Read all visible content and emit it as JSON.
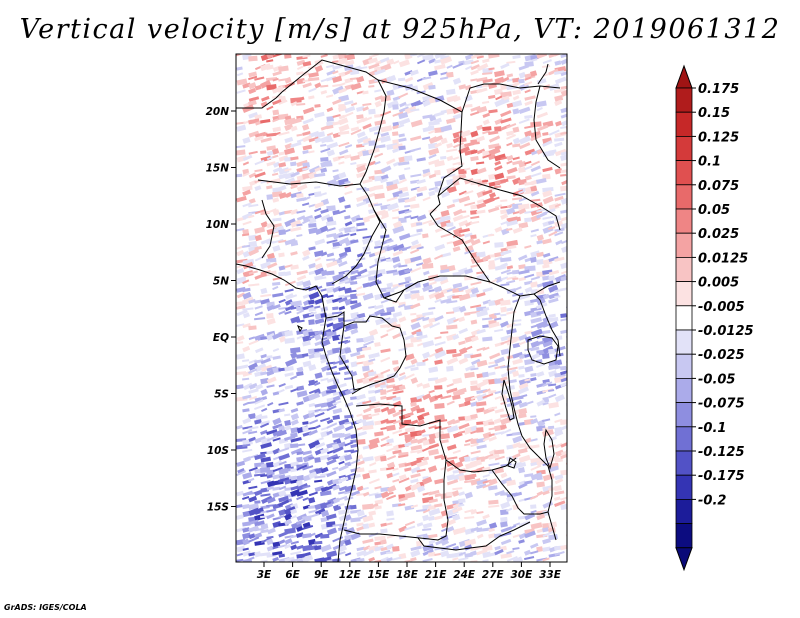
{
  "title": "Vertical velocity [m/s] at 925hPa, VT: 2019061312",
  "credit": "GrADS: IGES/COLA",
  "chart_data": {
    "type": "heatmap",
    "title": "Vertical velocity [m/s] at 925hPa, VT: 2019061312",
    "variable": "Vertical velocity",
    "units": "m/s",
    "level": "925hPa",
    "valid_time": "2019061312",
    "x_ticks": [
      "3E",
      "6E",
      "9E",
      "12E",
      "15E",
      "18E",
      "21E",
      "24E",
      "27E",
      "30E",
      "33E"
    ],
    "y_ticks": [
      "20N",
      "15N",
      "10N",
      "5N",
      "EQ",
      "5S",
      "10S",
      "15S"
    ],
    "colorbar": {
      "labels": [
        "0.175",
        "0.15",
        "0.125",
        "0.1",
        "0.075",
        "0.05",
        "0.025",
        "0.0125",
        "0.005",
        "-0.005",
        "-0.0125",
        "-0.025",
        "-0.05",
        "-0.075",
        "-0.1",
        "-0.125",
        "-0.175",
        "-0.2"
      ],
      "colors": [
        "#b01c1c",
        "#c62828",
        "#d43a3a",
        "#e05050",
        "#e86a6a",
        "#ef8585",
        "#f4a3a3",
        "#f8c4c4",
        "#fce2e2",
        "#ffffff",
        "#e2e2f8",
        "#c8c8f2",
        "#ababea",
        "#8e8ee0",
        "#7070d4",
        "#5252c6",
        "#3434b4",
        "#1c1c9a",
        "#0c0c80"
      ],
      "extend_top_color": "#a01414",
      "extend_bottom_color": "#0a0a78"
    }
  }
}
